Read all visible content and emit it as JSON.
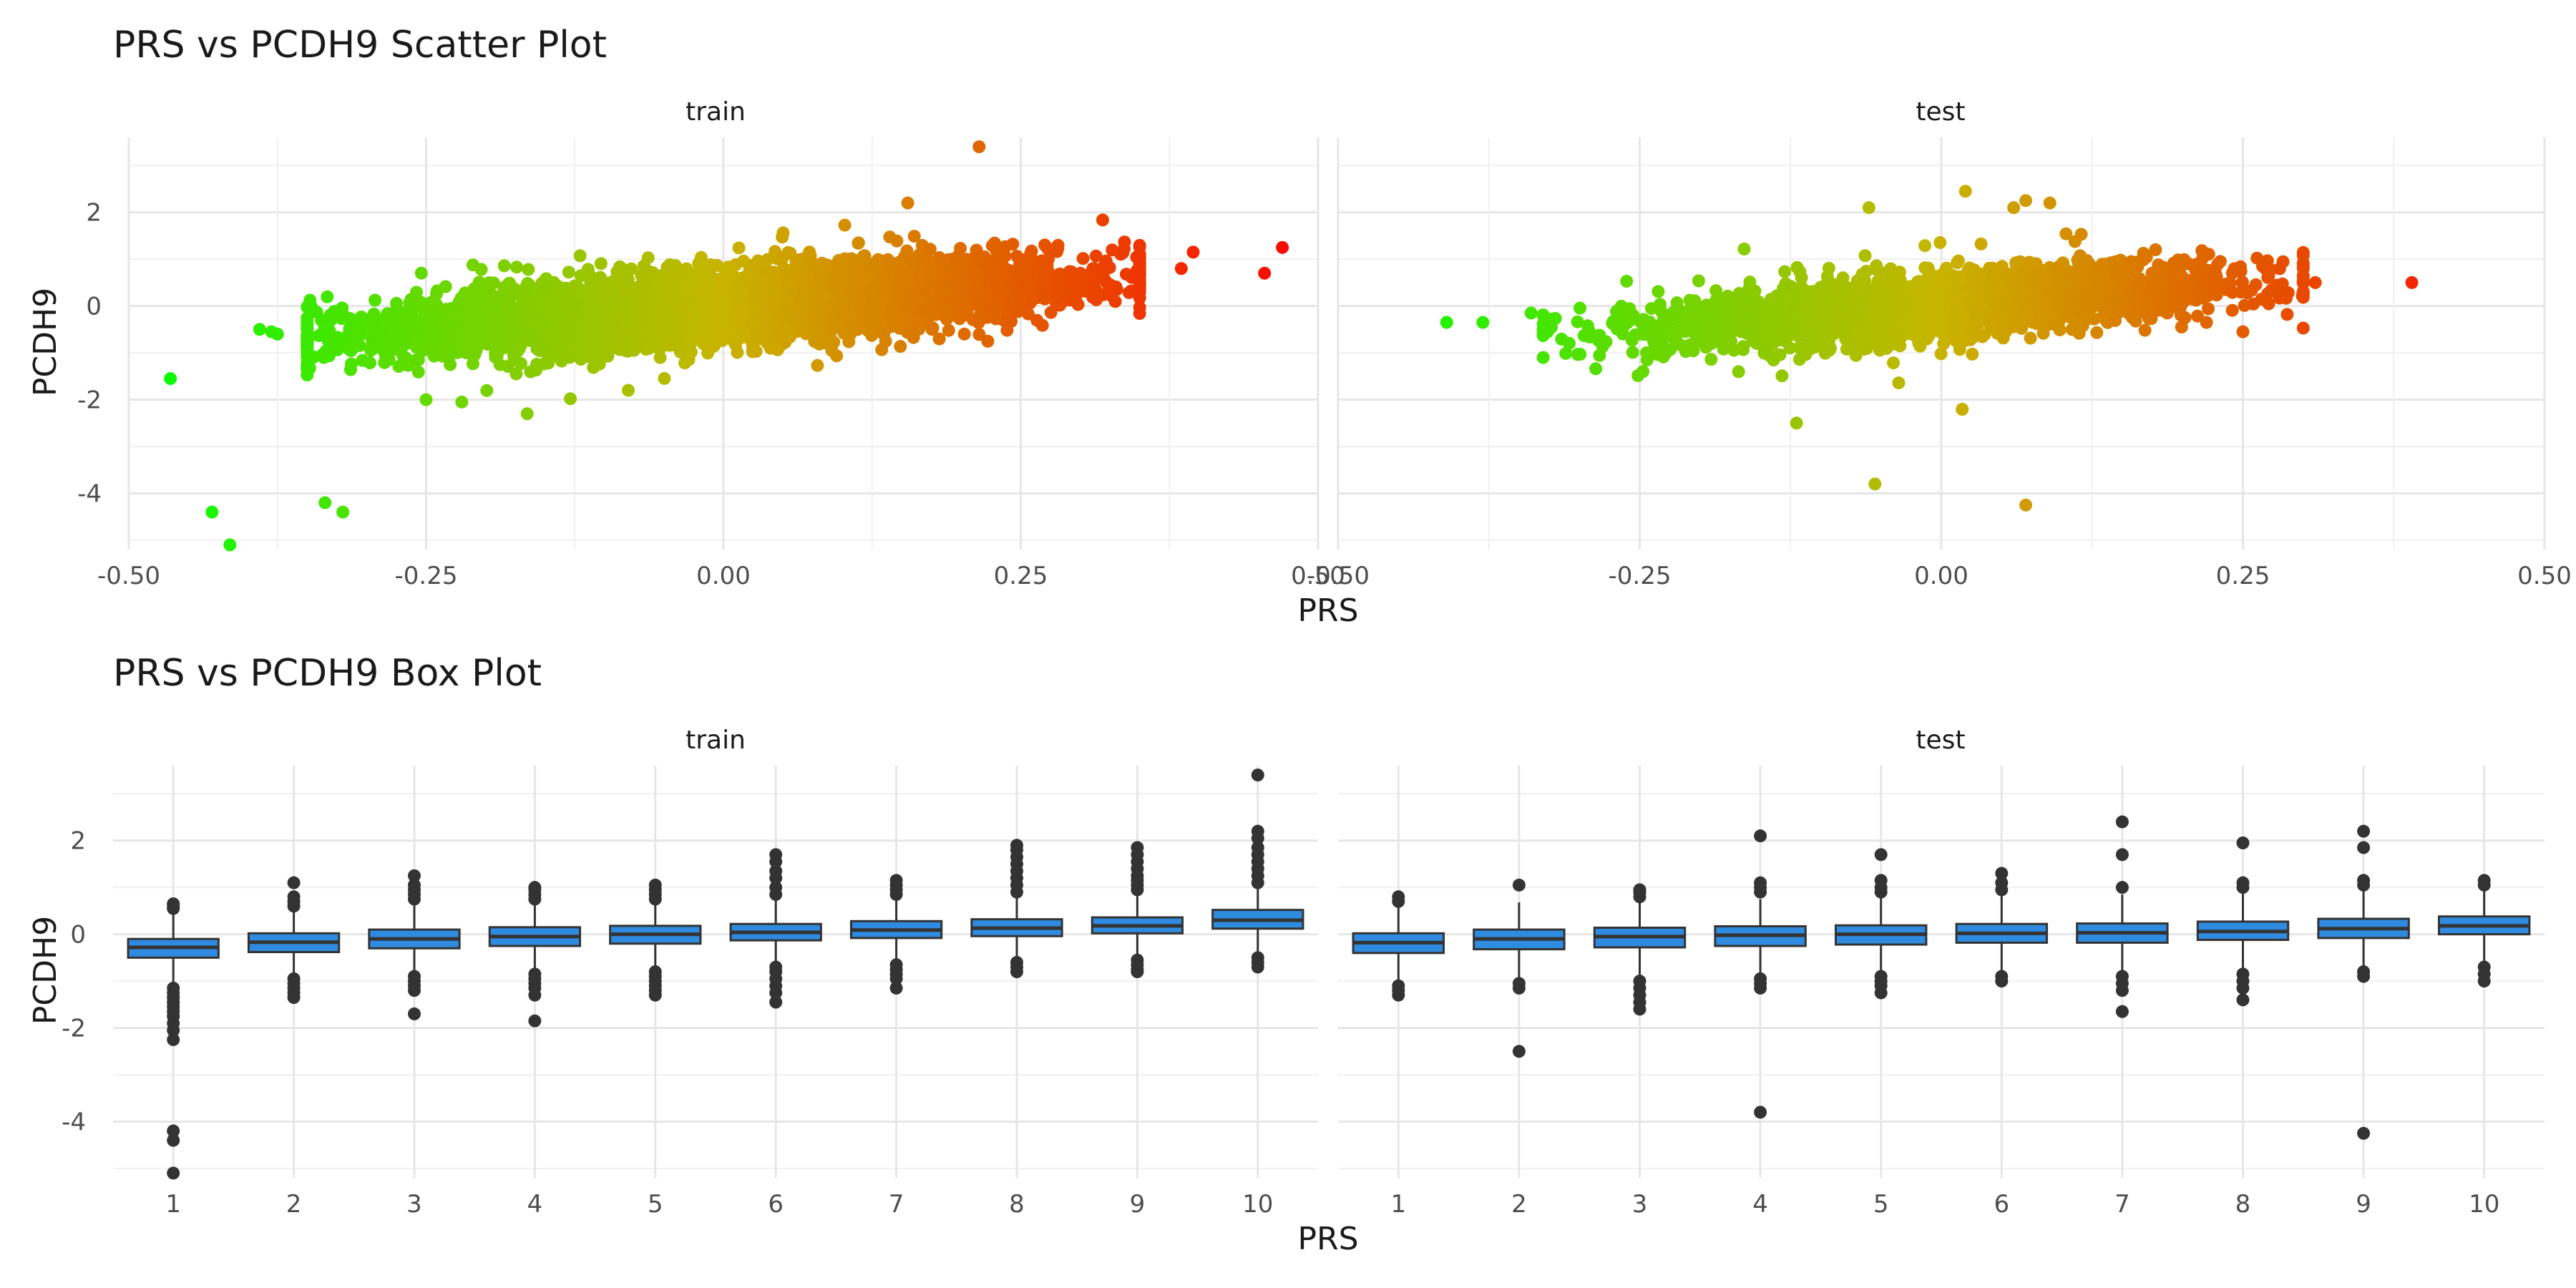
{
  "chart_data": [
    {
      "type": "scatter",
      "title": "PRS vs PCDH9 Scatter Plot",
      "xlabel": "PRS",
      "ylabel": "PCDH9",
      "facets": [
        "train",
        "test"
      ],
      "xlim": [
        -0.5,
        0.5
      ],
      "ylim": [
        -5.2,
        3.6
      ],
      "x_ticks": [
        "-0.50",
        "-0.25",
        "0.00",
        "0.25",
        "0.50"
      ],
      "y_ticks": [
        "2",
        "0",
        "-2",
        "-4"
      ],
      "color_scale": {
        "low": "#00ff00",
        "mid": "#c8b400",
        "high": "#ff0000",
        "mapped_to": "PRS"
      },
      "grid": true,
      "regression_slope_estimate": 2.0,
      "train": {
        "n_bulk_estimate": 15000,
        "x_range_bulk": [
          -0.35,
          0.35
        ],
        "y_spread_sd": 0.35,
        "notable_points": [
          {
            "x": -0.465,
            "y": -1.55
          },
          {
            "x": -0.43,
            "y": -4.4
          },
          {
            "x": -0.415,
            "y": -5.1
          },
          {
            "x": -0.335,
            "y": -4.2
          },
          {
            "x": -0.32,
            "y": -4.4
          },
          {
            "x": 0.215,
            "y": 3.4
          },
          {
            "x": 0.155,
            "y": 2.2
          },
          {
            "x": 0.385,
            "y": 0.8
          },
          {
            "x": 0.395,
            "y": 1.15
          },
          {
            "x": 0.455,
            "y": 0.7
          },
          {
            "x": 0.47,
            "y": 1.25
          },
          {
            "x": -0.25,
            "y": -2.0
          },
          {
            "x": -0.22,
            "y": -2.05
          },
          {
            "x": -0.165,
            "y": -2.3
          },
          {
            "x": -0.08,
            "y": -1.8
          },
          {
            "x": -0.39,
            "y": -0.5
          },
          {
            "x": -0.375,
            "y": -0.6
          },
          {
            "x": -0.38,
            "y": -0.55
          }
        ]
      },
      "test": {
        "n_bulk_estimate": 3500,
        "x_range_bulk": [
          -0.33,
          0.3
        ],
        "y_spread_sd": 0.33,
        "notable_points": [
          {
            "x": -0.41,
            "y": -0.35
          },
          {
            "x": -0.38,
            "y": -0.35
          },
          {
            "x": -0.34,
            "y": -0.15
          },
          {
            "x": -0.33,
            "y": -1.1
          },
          {
            "x": 0.39,
            "y": 0.5
          },
          {
            "x": -0.06,
            "y": 2.1
          },
          {
            "x": 0.02,
            "y": 2.45
          },
          {
            "x": 0.06,
            "y": 2.1
          },
          {
            "x": 0.07,
            "y": 2.25
          },
          {
            "x": 0.09,
            "y": 2.2
          },
          {
            "x": -0.12,
            "y": -2.5
          },
          {
            "x": -0.055,
            "y": -3.8
          },
          {
            "x": 0.07,
            "y": -4.25
          },
          {
            "x": 0.31,
            "y": 0.5
          },
          {
            "x": 0.25,
            "y": -0.55
          }
        ]
      }
    },
    {
      "type": "box",
      "title": "PRS vs PCDH9 Box Plot",
      "xlabel": "PRS",
      "ylabel": "PCDH9",
      "facets": [
        "train",
        "test"
      ],
      "categories": [
        "1",
        "2",
        "3",
        "4",
        "5",
        "6",
        "7",
        "8",
        "9",
        "10"
      ],
      "ylim": [
        -5.2,
        3.6
      ],
      "y_ticks": [
        "2",
        "0",
        "-2",
        "-4"
      ],
      "box_color": "#2f8bdf",
      "outlier_color": "#333333",
      "grid": true,
      "train": [
        {
          "q1": -0.5,
          "median": -0.28,
          "q3": -0.1,
          "whisker_low": -1.05,
          "whisker_high": 0.5,
          "outliers": [
            0.55,
            0.6,
            0.65,
            -1.15,
            -1.25,
            -1.35,
            -1.45,
            -1.55,
            -1.65,
            -1.75,
            -1.9,
            -2.05,
            -2.25,
            -4.2,
            -4.4,
            -5.1
          ]
        },
        {
          "q1": -0.38,
          "median": -0.17,
          "q3": 0.02,
          "whisker_low": -0.9,
          "whisker_high": 0.55,
          "outliers": [
            0.6,
            0.7,
            0.8,
            1.1,
            -0.95,
            -1.05,
            -1.15,
            -1.25,
            -1.35
          ]
        },
        {
          "q1": -0.3,
          "median": -0.1,
          "q3": 0.1,
          "whisker_low": -0.85,
          "whisker_high": 0.65,
          "outliers": [
            0.75,
            0.85,
            0.95,
            1.05,
            1.25,
            -0.9,
            -1.0,
            -1.1,
            -1.2,
            -1.7
          ]
        },
        {
          "q1": -0.25,
          "median": -0.05,
          "q3": 0.15,
          "whisker_low": -0.8,
          "whisker_high": 0.7,
          "outliers": [
            0.75,
            0.85,
            0.95,
            1.0,
            -0.85,
            -0.95,
            -1.05,
            -1.15,
            -1.3,
            -1.85
          ]
        },
        {
          "q1": -0.2,
          "median": 0.0,
          "q3": 0.18,
          "whisker_low": -0.75,
          "whisker_high": 0.72,
          "outliers": [
            0.75,
            0.85,
            0.95,
            1.05,
            -0.8,
            -0.9,
            -1.0,
            -1.1,
            -1.2,
            -1.3
          ]
        },
        {
          "q1": -0.13,
          "median": 0.04,
          "q3": 0.22,
          "whisker_low": -0.65,
          "whisker_high": 0.75,
          "outliers": [
            0.85,
            1.0,
            1.2,
            1.35,
            1.55,
            1.7,
            -0.7,
            -0.8,
            -0.95,
            -1.1,
            -1.25,
            -1.45
          ]
        },
        {
          "q1": -0.08,
          "median": 0.09,
          "q3": 0.28,
          "whisker_low": -0.6,
          "whisker_high": 0.8,
          "outliers": [
            0.85,
            0.95,
            1.05,
            1.15,
            -0.65,
            -0.75,
            -0.85,
            -0.95,
            -1.15
          ]
        },
        {
          "q1": -0.04,
          "median": 0.13,
          "q3": 0.32,
          "whisker_low": -0.55,
          "whisker_high": 0.85,
          "outliers": [
            0.9,
            1.05,
            1.2,
            1.35,
            1.5,
            1.65,
            1.8,
            1.9,
            -0.6,
            -0.7,
            -0.8
          ]
        },
        {
          "q1": 0.02,
          "median": 0.18,
          "q3": 0.36,
          "whisker_low": -0.5,
          "whisker_high": 0.9,
          "outliers": [
            0.95,
            1.05,
            1.15,
            1.25,
            1.4,
            1.55,
            1.7,
            1.85,
            -0.55,
            -0.65,
            -0.75,
            -0.8
          ]
        },
        {
          "q1": 0.12,
          "median": 0.3,
          "q3": 0.52,
          "whisker_low": -0.45,
          "whisker_high": 1.05,
          "outliers": [
            1.1,
            1.25,
            1.4,
            1.55,
            1.7,
            1.85,
            2.05,
            2.2,
            3.4,
            -0.5,
            -0.6,
            -0.7
          ]
        }
      ],
      "test": [
        {
          "q1": -0.4,
          "median": -0.18,
          "q3": 0.02,
          "whisker_low": -1.0,
          "whisker_high": 0.62,
          "outliers": [
            0.7,
            0.8,
            -1.1,
            -1.2,
            -1.3
          ]
        },
        {
          "q1": -0.32,
          "median": -0.1,
          "q3": 0.1,
          "whisker_low": -0.95,
          "whisker_high": 0.68,
          "outliers": [
            1.05,
            -1.05,
            -1.15,
            -2.5
          ]
        },
        {
          "q1": -0.28,
          "median": -0.05,
          "q3": 0.14,
          "whisker_low": -0.9,
          "whisker_high": 0.72,
          "outliers": [
            0.8,
            0.9,
            0.95,
            -1.0,
            -1.15,
            -1.3,
            -1.45,
            -1.6
          ]
        },
        {
          "q1": -0.25,
          "median": -0.02,
          "q3": 0.17,
          "whisker_low": -0.85,
          "whisker_high": 0.75,
          "outliers": [
            0.9,
            1.0,
            1.1,
            2.1,
            -0.95,
            -1.05,
            -1.15,
            -3.8
          ]
        },
        {
          "q1": -0.22,
          "median": 0.0,
          "q3": 0.19,
          "whisker_low": -0.82,
          "whisker_high": 0.8,
          "outliers": [
            0.9,
            1.0,
            1.15,
            1.7,
            -0.9,
            -1.0,
            -1.1,
            -1.25
          ]
        },
        {
          "q1": -0.18,
          "median": 0.02,
          "q3": 0.22,
          "whisker_low": -0.8,
          "whisker_high": 0.82,
          "outliers": [
            0.95,
            1.1,
            1.3,
            -0.9,
            -1.0
          ]
        },
        {
          "q1": -0.18,
          "median": 0.03,
          "q3": 0.23,
          "whisker_low": -0.8,
          "whisker_high": 0.85,
          "outliers": [
            1.0,
            1.7,
            2.4,
            -0.9,
            -1.05,
            -1.2,
            -1.65
          ]
        },
        {
          "q1": -0.12,
          "median": 0.06,
          "q3": 0.27,
          "whisker_low": -0.75,
          "whisker_high": 0.88,
          "outliers": [
            1.0,
            1.1,
            1.95,
            -0.85,
            -1.0,
            -1.15,
            -1.4
          ]
        },
        {
          "q1": -0.08,
          "median": 0.12,
          "q3": 0.33,
          "whisker_low": -0.7,
          "whisker_high": 0.95,
          "outliers": [
            1.05,
            1.15,
            1.85,
            2.2,
            -0.8,
            -0.9,
            -4.25
          ]
        },
        {
          "q1": 0.0,
          "median": 0.18,
          "q3": 0.38,
          "whisker_low": -0.6,
          "whisker_high": 1.0,
          "outliers": [
            1.05,
            1.15,
            -0.7,
            -0.85,
            -1.0
          ]
        }
      ]
    }
  ]
}
